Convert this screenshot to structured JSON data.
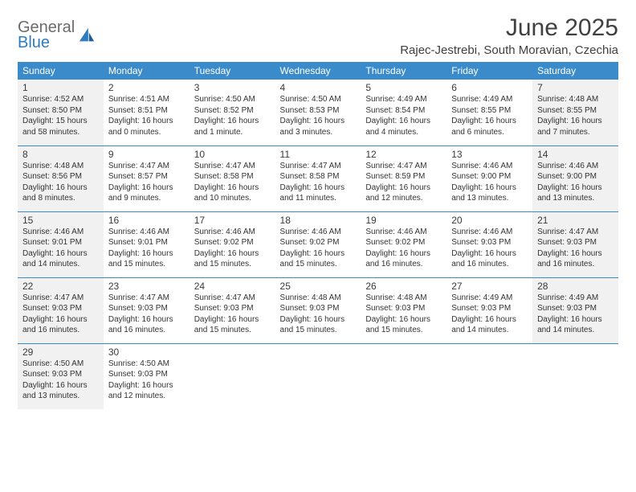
{
  "brand": {
    "line1": "General",
    "line2": "Blue",
    "line1_color": "#6b6b6b",
    "line2_color": "#2f7bbf"
  },
  "title": "June 2025",
  "subtitle": "Rajec-Jestrebi, South Moravian, Czechia",
  "header_bg": "#3b8bca",
  "header_fg": "#ffffff",
  "shade_bg": "#f1f1f1",
  "separator_color": "#3b8bca",
  "font_family": "Arial, Helvetica, sans-serif",
  "title_fontsize": 30,
  "subtitle_fontsize": 15,
  "header_fontsize": 12,
  "daynum_fontsize": 12,
  "body_fontsize": 10,
  "columns": [
    "Sunday",
    "Monday",
    "Tuesday",
    "Wednesday",
    "Thursday",
    "Friday",
    "Saturday"
  ],
  "weeks": [
    [
      {
        "n": "1",
        "shade": true,
        "lines": [
          "Sunrise: 4:52 AM",
          "Sunset: 8:50 PM",
          "Daylight: 15 hours",
          "and 58 minutes."
        ]
      },
      {
        "n": "2",
        "shade": false,
        "lines": [
          "Sunrise: 4:51 AM",
          "Sunset: 8:51 PM",
          "Daylight: 16 hours",
          "and 0 minutes."
        ]
      },
      {
        "n": "3",
        "shade": false,
        "lines": [
          "Sunrise: 4:50 AM",
          "Sunset: 8:52 PM",
          "Daylight: 16 hours",
          "and 1 minute."
        ]
      },
      {
        "n": "4",
        "shade": false,
        "lines": [
          "Sunrise: 4:50 AM",
          "Sunset: 8:53 PM",
          "Daylight: 16 hours",
          "and 3 minutes."
        ]
      },
      {
        "n": "5",
        "shade": false,
        "lines": [
          "Sunrise: 4:49 AM",
          "Sunset: 8:54 PM",
          "Daylight: 16 hours",
          "and 4 minutes."
        ]
      },
      {
        "n": "6",
        "shade": false,
        "lines": [
          "Sunrise: 4:49 AM",
          "Sunset: 8:55 PM",
          "Daylight: 16 hours",
          "and 6 minutes."
        ]
      },
      {
        "n": "7",
        "shade": true,
        "lines": [
          "Sunrise: 4:48 AM",
          "Sunset: 8:55 PM",
          "Daylight: 16 hours",
          "and 7 minutes."
        ]
      }
    ],
    [
      {
        "n": "8",
        "shade": true,
        "lines": [
          "Sunrise: 4:48 AM",
          "Sunset: 8:56 PM",
          "Daylight: 16 hours",
          "and 8 minutes."
        ]
      },
      {
        "n": "9",
        "shade": false,
        "lines": [
          "Sunrise: 4:47 AM",
          "Sunset: 8:57 PM",
          "Daylight: 16 hours",
          "and 9 minutes."
        ]
      },
      {
        "n": "10",
        "shade": false,
        "lines": [
          "Sunrise: 4:47 AM",
          "Sunset: 8:58 PM",
          "Daylight: 16 hours",
          "and 10 minutes."
        ]
      },
      {
        "n": "11",
        "shade": false,
        "lines": [
          "Sunrise: 4:47 AM",
          "Sunset: 8:58 PM",
          "Daylight: 16 hours",
          "and 11 minutes."
        ]
      },
      {
        "n": "12",
        "shade": false,
        "lines": [
          "Sunrise: 4:47 AM",
          "Sunset: 8:59 PM",
          "Daylight: 16 hours",
          "and 12 minutes."
        ]
      },
      {
        "n": "13",
        "shade": false,
        "lines": [
          "Sunrise: 4:46 AM",
          "Sunset: 9:00 PM",
          "Daylight: 16 hours",
          "and 13 minutes."
        ]
      },
      {
        "n": "14",
        "shade": true,
        "lines": [
          "Sunrise: 4:46 AM",
          "Sunset: 9:00 PM",
          "Daylight: 16 hours",
          "and 13 minutes."
        ]
      }
    ],
    [
      {
        "n": "15",
        "shade": true,
        "lines": [
          "Sunrise: 4:46 AM",
          "Sunset: 9:01 PM",
          "Daylight: 16 hours",
          "and 14 minutes."
        ]
      },
      {
        "n": "16",
        "shade": false,
        "lines": [
          "Sunrise: 4:46 AM",
          "Sunset: 9:01 PM",
          "Daylight: 16 hours",
          "and 15 minutes."
        ]
      },
      {
        "n": "17",
        "shade": false,
        "lines": [
          "Sunrise: 4:46 AM",
          "Sunset: 9:02 PM",
          "Daylight: 16 hours",
          "and 15 minutes."
        ]
      },
      {
        "n": "18",
        "shade": false,
        "lines": [
          "Sunrise: 4:46 AM",
          "Sunset: 9:02 PM",
          "Daylight: 16 hours",
          "and 15 minutes."
        ]
      },
      {
        "n": "19",
        "shade": false,
        "lines": [
          "Sunrise: 4:46 AM",
          "Sunset: 9:02 PM",
          "Daylight: 16 hours",
          "and 16 minutes."
        ]
      },
      {
        "n": "20",
        "shade": false,
        "lines": [
          "Sunrise: 4:46 AM",
          "Sunset: 9:03 PM",
          "Daylight: 16 hours",
          "and 16 minutes."
        ]
      },
      {
        "n": "21",
        "shade": true,
        "lines": [
          "Sunrise: 4:47 AM",
          "Sunset: 9:03 PM",
          "Daylight: 16 hours",
          "and 16 minutes."
        ]
      }
    ],
    [
      {
        "n": "22",
        "shade": true,
        "lines": [
          "Sunrise: 4:47 AM",
          "Sunset: 9:03 PM",
          "Daylight: 16 hours",
          "and 16 minutes."
        ]
      },
      {
        "n": "23",
        "shade": false,
        "lines": [
          "Sunrise: 4:47 AM",
          "Sunset: 9:03 PM",
          "Daylight: 16 hours",
          "and 16 minutes."
        ]
      },
      {
        "n": "24",
        "shade": false,
        "lines": [
          "Sunrise: 4:47 AM",
          "Sunset: 9:03 PM",
          "Daylight: 16 hours",
          "and 15 minutes."
        ]
      },
      {
        "n": "25",
        "shade": false,
        "lines": [
          "Sunrise: 4:48 AM",
          "Sunset: 9:03 PM",
          "Daylight: 16 hours",
          "and 15 minutes."
        ]
      },
      {
        "n": "26",
        "shade": false,
        "lines": [
          "Sunrise: 4:48 AM",
          "Sunset: 9:03 PM",
          "Daylight: 16 hours",
          "and 15 minutes."
        ]
      },
      {
        "n": "27",
        "shade": false,
        "lines": [
          "Sunrise: 4:49 AM",
          "Sunset: 9:03 PM",
          "Daylight: 16 hours",
          "and 14 minutes."
        ]
      },
      {
        "n": "28",
        "shade": true,
        "lines": [
          "Sunrise: 4:49 AM",
          "Sunset: 9:03 PM",
          "Daylight: 16 hours",
          "and 14 minutes."
        ]
      }
    ],
    [
      {
        "n": "29",
        "shade": true,
        "lines": [
          "Sunrise: 4:50 AM",
          "Sunset: 9:03 PM",
          "Daylight: 16 hours",
          "and 13 minutes."
        ]
      },
      {
        "n": "30",
        "shade": false,
        "lines": [
          "Sunrise: 4:50 AM",
          "Sunset: 9:03 PM",
          "Daylight: 16 hours",
          "and 12 minutes."
        ]
      },
      {
        "n": "",
        "shade": false,
        "lines": []
      },
      {
        "n": "",
        "shade": false,
        "lines": []
      },
      {
        "n": "",
        "shade": false,
        "lines": []
      },
      {
        "n": "",
        "shade": false,
        "lines": []
      },
      {
        "n": "",
        "shade": false,
        "lines": []
      }
    ]
  ]
}
